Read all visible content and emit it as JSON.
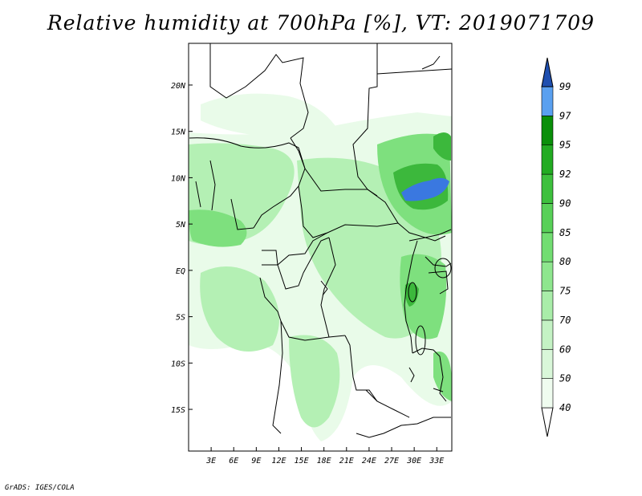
{
  "title": "Relative humidity at 700hPa [%], VT: 2019071709",
  "credit": "GrADS: IGES/COLA",
  "map": {
    "lat_labels": [
      "20N",
      "15N",
      "10N",
      "5N",
      "EQ",
      "5S",
      "10S",
      "15S"
    ],
    "lon_labels": [
      "3E",
      "6E",
      "9E",
      "12E",
      "15E",
      "18E",
      "21E",
      "24E",
      "27E",
      "30E",
      "33E"
    ],
    "lat_range": [
      -19.5,
      24.5
    ],
    "lon_range": [
      0,
      35
    ]
  },
  "colorbar": {
    "levels": [
      "40",
      "50",
      "60",
      "70",
      "75",
      "80",
      "85",
      "90",
      "92",
      "95",
      "97",
      "99"
    ],
    "colors": [
      "#effcef",
      "#d9f7d9",
      "#c4f2c4",
      "#a9eda9",
      "#8ee68e",
      "#72dd72",
      "#58d058",
      "#3dc03d",
      "#22ab22",
      "#0a8f0a",
      "#5aa0f0",
      "#2a6ad8",
      "#1f4fb0"
    ],
    "extend": "both"
  },
  "field_colors": {
    "light": "#e9fbe9",
    "mid": "#b4f0b4",
    "strong": "#7ee07e",
    "deep": "#3cb83c",
    "blue": "#3a78e0"
  }
}
